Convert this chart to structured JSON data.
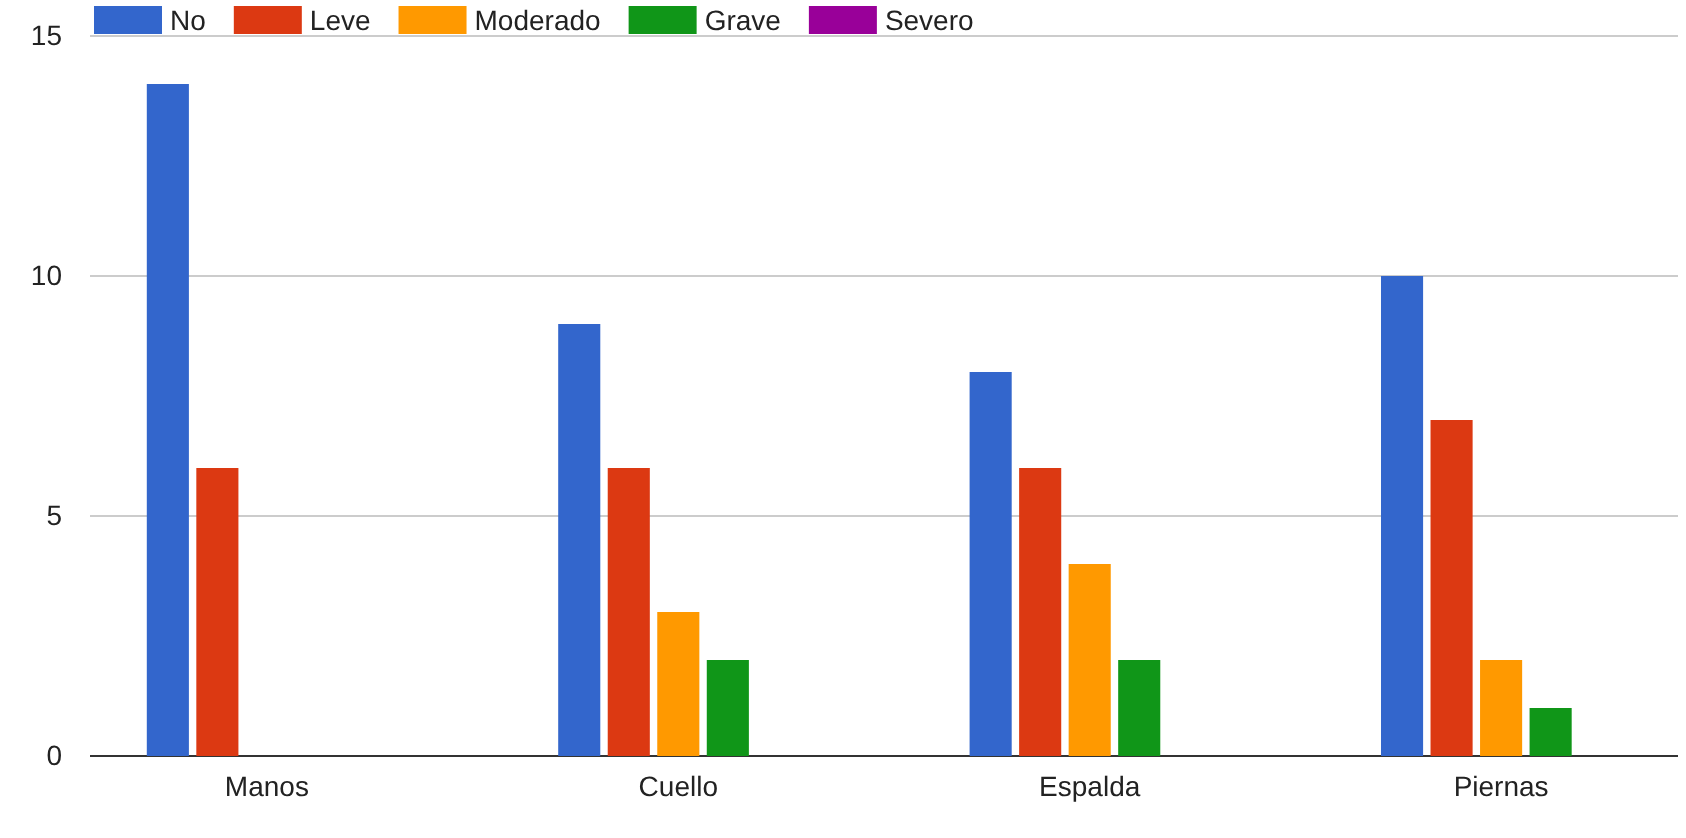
{
  "chart_data": {
    "type": "bar",
    "categories": [
      "Manos",
      "Cuello",
      "Espalda",
      "Piernas"
    ],
    "series": [
      {
        "name": "No",
        "color": "#3366cc",
        "values": [
          14,
          9,
          8,
          10
        ]
      },
      {
        "name": "Leve",
        "color": "#dc3912",
        "values": [
          6,
          6,
          6,
          7
        ]
      },
      {
        "name": "Moderado",
        "color": "#ff9900",
        "values": [
          0,
          3,
          4,
          2
        ]
      },
      {
        "name": "Grave",
        "color": "#109618",
        "values": [
          0,
          2,
          2,
          1
        ]
      },
      {
        "name": "Severo",
        "color": "#990099",
        "values": [
          0,
          0,
          0,
          0
        ]
      }
    ],
    "ylim": [
      0,
      15
    ],
    "yticks": [
      0,
      5,
      10,
      15
    ],
    "grid": "y",
    "legend": "top"
  }
}
